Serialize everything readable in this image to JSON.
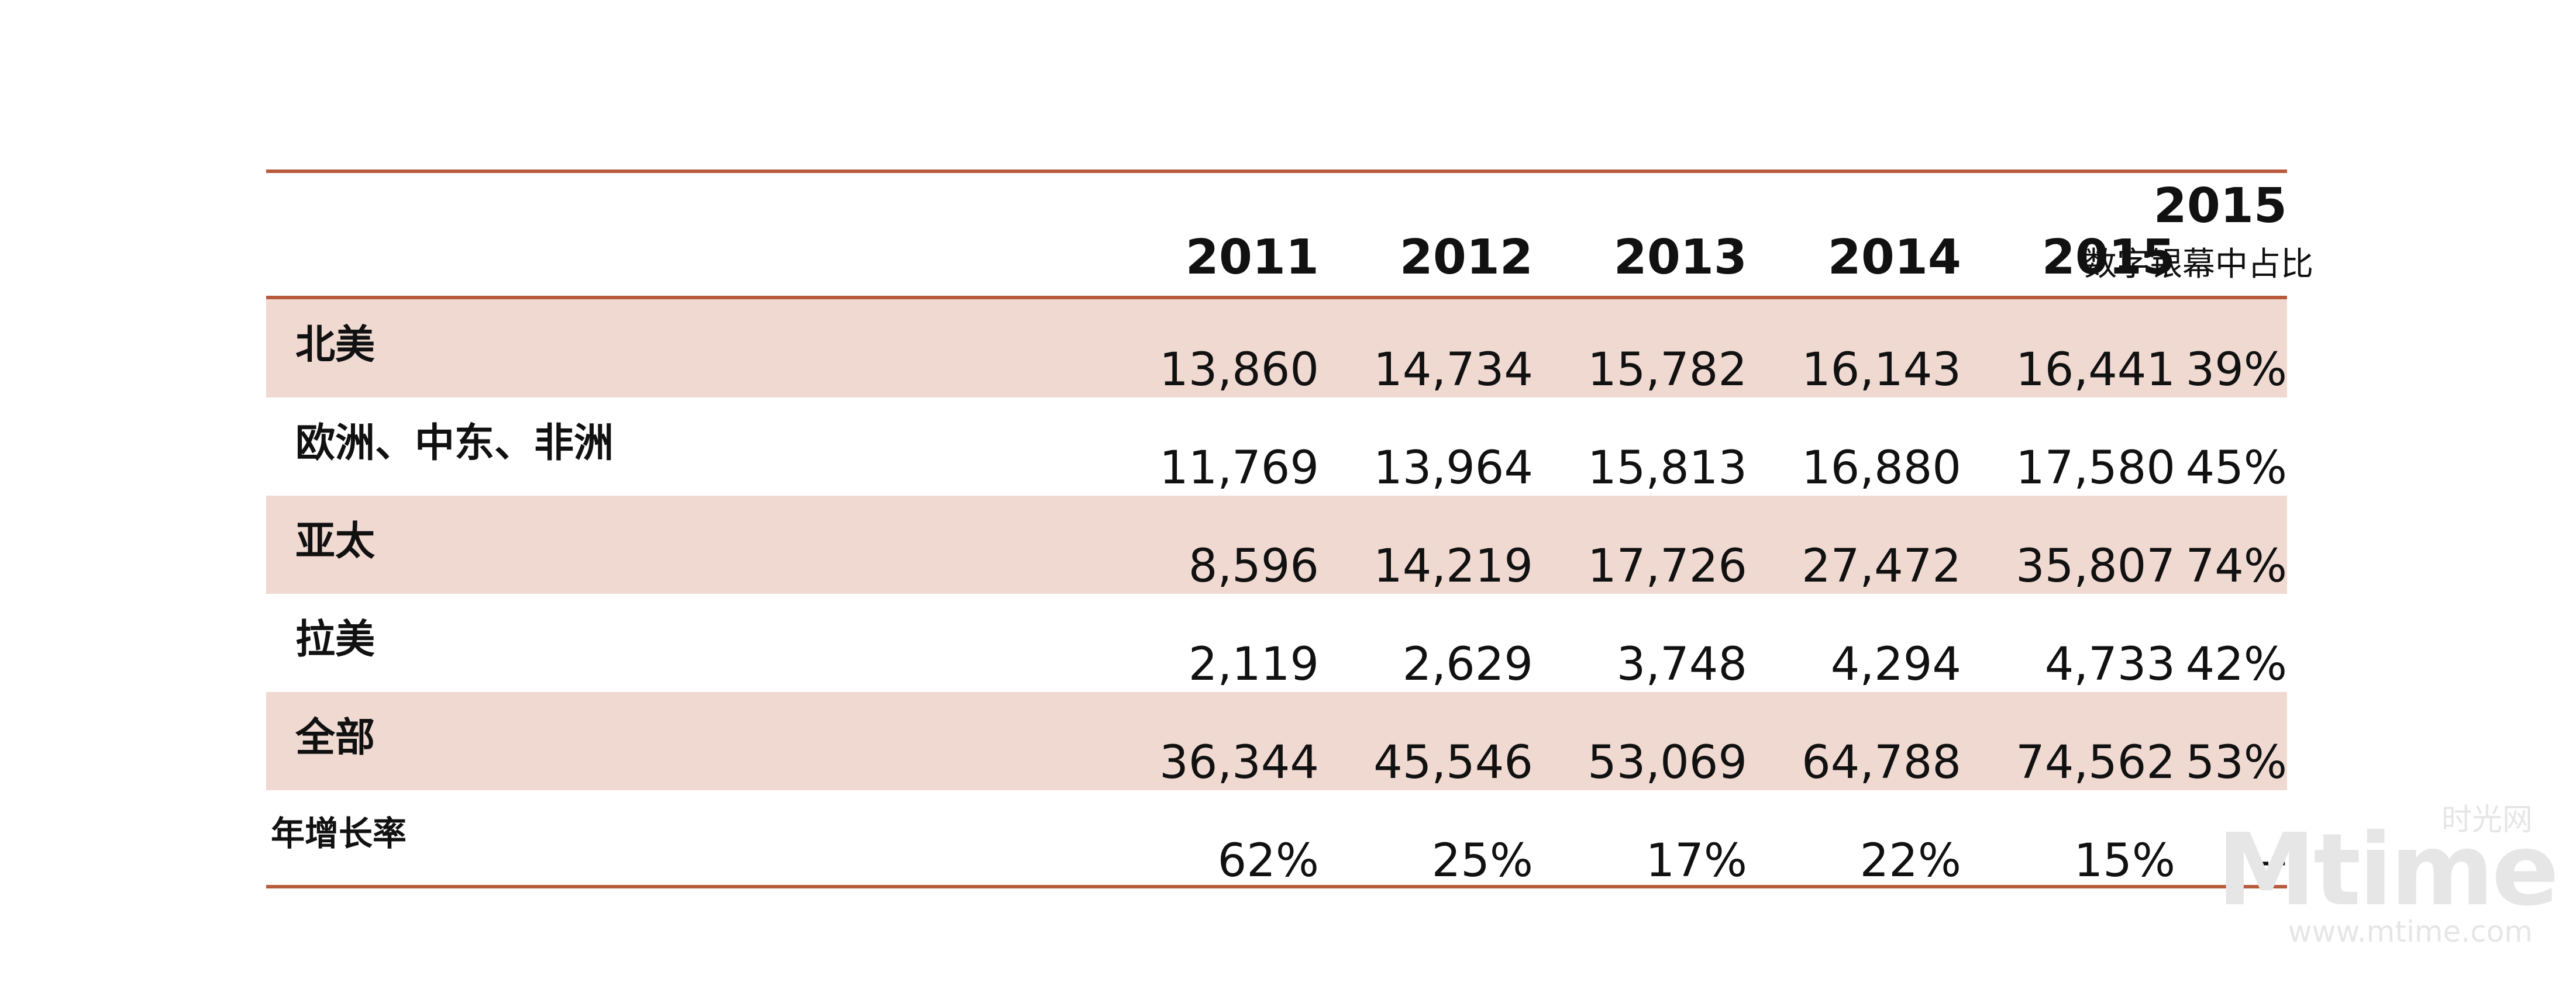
{
  "chart_data": {
    "type": "table",
    "columns": [
      "2011",
      "2012",
      "2013",
      "2014",
      "2015"
    ],
    "share_column": {
      "year": "2015",
      "label": "数字银幕中占比"
    },
    "rows": [
      {
        "label": "北美",
        "values": [
          "13,860",
          "14,734",
          "15,782",
          "16,143",
          "16,441"
        ],
        "share": "39%",
        "shaded": true
      },
      {
        "label": "欧洲、中东、非洲",
        "values": [
          "11,769",
          "13,964",
          "15,813",
          "16,880",
          "17,580"
        ],
        "share": "45%",
        "shaded": false
      },
      {
        "label": "亚太",
        "values": [
          "8,596",
          "14,219",
          "17,726",
          "27,472",
          "35,807"
        ],
        "share": "74%",
        "shaded": true
      },
      {
        "label": "拉美",
        "values": [
          "2,119",
          "2,629",
          "3,748",
          "4,294",
          "4,733"
        ],
        "share": "42%",
        "shaded": false
      },
      {
        "label": "全部",
        "values": [
          "36,344",
          "45,546",
          "53,069",
          "64,788",
          "74,562"
        ],
        "share": "53%",
        "shaded": true
      },
      {
        "label": "年增长率",
        "values": [
          "62%",
          "25%",
          "17%",
          "22%",
          "15%"
        ],
        "share": "--",
        "shaded": false,
        "small": true
      }
    ]
  },
  "watermark": {
    "top": "时光网",
    "main": "Mtime",
    "url": "www.mtime.com"
  },
  "colors": {
    "rule": "#b85a3c",
    "shade": "#efd9d1"
  }
}
